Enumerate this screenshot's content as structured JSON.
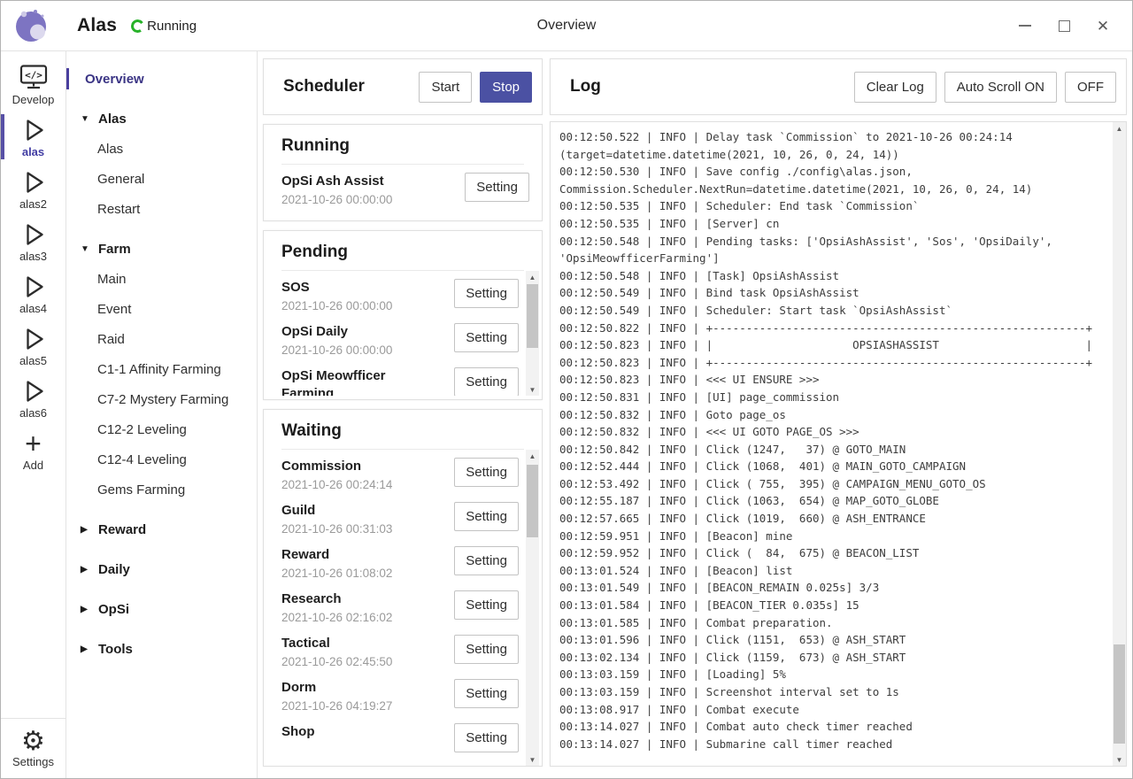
{
  "titlebar": {
    "app_name": "Alas",
    "status": "Running",
    "window_title": "Overview"
  },
  "icons": {
    "close": "✕",
    "tri_down": "▼",
    "tri_right": "▶",
    "arrow_up": "▲",
    "arrow_down": "▼",
    "gear": "⚙",
    "plus": "+"
  },
  "colors": {
    "accent": "#4b51a3",
    "running_green": "#27b229",
    "nav_active": "#3b3585"
  },
  "rail": {
    "items": [
      {
        "label": "Develop",
        "icon": "code-monitor",
        "active": false
      },
      {
        "label": "alas",
        "icon": "play",
        "active": true
      },
      {
        "label": "alas2",
        "icon": "play",
        "active": false
      },
      {
        "label": "alas3",
        "icon": "play",
        "active": false
      },
      {
        "label": "alas4",
        "icon": "play",
        "active": false
      },
      {
        "label": "alas5",
        "icon": "play",
        "active": false
      },
      {
        "label": "alas6",
        "icon": "play",
        "active": false
      },
      {
        "label": "Add",
        "icon": "plus",
        "active": false
      }
    ],
    "settings_label": "Settings"
  },
  "nav": {
    "items": [
      {
        "type": "link",
        "label": "Overview",
        "active": true
      },
      {
        "type": "group",
        "label": "Alas",
        "expanded": true
      },
      {
        "type": "child",
        "label": "Alas"
      },
      {
        "type": "child",
        "label": "General"
      },
      {
        "type": "child",
        "label": "Restart"
      },
      {
        "type": "group",
        "label": "Farm",
        "expanded": true
      },
      {
        "type": "child",
        "label": "Main"
      },
      {
        "type": "child",
        "label": "Event"
      },
      {
        "type": "child",
        "label": "Raid"
      },
      {
        "type": "child",
        "label": "C1-1 Affinity Farming"
      },
      {
        "type": "child",
        "label": "C7-2 Mystery Farming"
      },
      {
        "type": "child",
        "label": "C12-2 Leveling"
      },
      {
        "type": "child",
        "label": "C12-4 Leveling"
      },
      {
        "type": "child",
        "label": "Gems Farming"
      },
      {
        "type": "group",
        "label": "Reward",
        "expanded": false
      },
      {
        "type": "group",
        "label": "Daily",
        "expanded": false
      },
      {
        "type": "group",
        "label": "OpSi",
        "expanded": false
      },
      {
        "type": "group",
        "label": "Tools",
        "expanded": false
      }
    ]
  },
  "buttons": {
    "start": "Start",
    "stop": "Stop",
    "setting": "Setting",
    "clear_log": "Clear Log",
    "auto_scroll_on": "Auto Scroll ON",
    "off": "OFF"
  },
  "scheduler": {
    "title": "Scheduler"
  },
  "running": {
    "title": "Running",
    "tasks": [
      {
        "name": "OpSi Ash Assist",
        "time": "2021-10-26 00:00:00"
      }
    ]
  },
  "pending": {
    "title": "Pending",
    "tasks": [
      {
        "name": "SOS",
        "time": "2021-10-26 00:00:00"
      },
      {
        "name": "OpSi Daily",
        "time": "2021-10-26 00:00:00"
      },
      {
        "name": "OpSi Meowfficer Farming",
        "time": ""
      }
    ]
  },
  "waiting": {
    "title": "Waiting",
    "tasks": [
      {
        "name": "Commission",
        "time": "2021-10-26 00:24:14"
      },
      {
        "name": "Guild",
        "time": "2021-10-26 00:31:03"
      },
      {
        "name": "Reward",
        "time": "2021-10-26 01:08:02"
      },
      {
        "name": "Research",
        "time": "2021-10-26 02:16:02"
      },
      {
        "name": "Tactical",
        "time": "2021-10-26 02:45:50"
      },
      {
        "name": "Dorm",
        "time": "2021-10-26 04:19:27"
      },
      {
        "name": "Shop",
        "time": ""
      }
    ]
  },
  "log": {
    "title": "Log",
    "lines": [
      "00:12:50.522 | INFO | Delay task `Commission` to 2021-10-26 00:24:14 (target=datetime.datetime(2021, 10, 26, 0, 24, 14))",
      "00:12:50.530 | INFO | Save config ./config\\alas.json, Commission.Scheduler.NextRun=datetime.datetime(2021, 10, 26, 0, 24, 14)",
      "00:12:50.535 | INFO | Scheduler: End task `Commission`",
      "00:12:50.535 | INFO | [Server] cn",
      "00:12:50.548 | INFO | Pending tasks: ['OpsiAshAssist', 'Sos', 'OpsiDaily', 'OpsiMeowfficerFarming']",
      "00:12:50.548 | INFO | [Task] OpsiAshAssist",
      "00:12:50.549 | INFO | Bind task OpsiAshAssist",
      "00:12:50.549 | INFO | Scheduler: Start task `OpsiAshAssist`",
      "00:12:50.822 | INFO | +--------------------------------------------------------+",
      "00:12:50.823 | INFO | |                     OPSIASHASSIST                      |",
      "00:12:50.823 | INFO | +--------------------------------------------------------+",
      "00:12:50.823 | INFO | <<< UI ENSURE >>>",
      "00:12:50.831 | INFO | [UI] page_commission",
      "00:12:50.832 | INFO | Goto page_os",
      "00:12:50.832 | INFO | <<< UI GOTO PAGE_OS >>>",
      "00:12:50.842 | INFO | Click (1247,   37) @ GOTO_MAIN",
      "00:12:52.444 | INFO | Click (1068,  401) @ MAIN_GOTO_CAMPAIGN",
      "00:12:53.492 | INFO | Click ( 755,  395) @ CAMPAIGN_MENU_GOTO_OS",
      "00:12:55.187 | INFO | Click (1063,  654) @ MAP_GOTO_GLOBE",
      "00:12:57.665 | INFO | Click (1019,  660) @ ASH_ENTRANCE",
      "00:12:59.951 | INFO | [Beacon] mine",
      "00:12:59.952 | INFO | Click (  84,  675) @ BEACON_LIST",
      "00:13:01.524 | INFO | [Beacon] list",
      "00:13:01.549 | INFO | [BEACON_REMAIN 0.025s] 3/3",
      "00:13:01.584 | INFO | [BEACON_TIER 0.035s] 15",
      "00:13:01.585 | INFO | Combat preparation.",
      "00:13:01.596 | INFO | Click (1151,  653) @ ASH_START",
      "00:13:02.134 | INFO | Click (1159,  673) @ ASH_START",
      "00:13:03.159 | INFO | [Loading] 5%",
      "00:13:03.159 | INFO | Screenshot interval set to 1s",
      "00:13:08.917 | INFO | Combat execute",
      "00:13:14.027 | INFO | Combat auto check timer reached",
      "00:13:14.027 | INFO | Submarine call timer reached"
    ]
  }
}
